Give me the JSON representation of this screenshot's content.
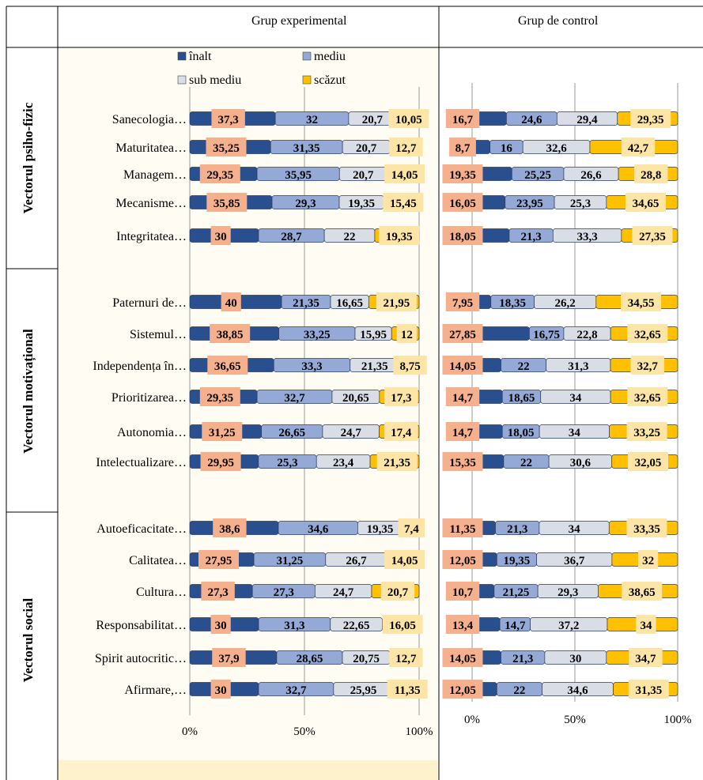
{
  "headers": {
    "experimental": "Grup experimental",
    "control": "Grup de control"
  },
  "vectors": [
    {
      "label": "Vectorul psiho-fizic"
    },
    {
      "label": "Vectorul motivațional"
    },
    {
      "label": "Vectorul social"
    }
  ],
  "legend": [
    {
      "name": "înalt",
      "color": "#2a4f8f"
    },
    {
      "name": "mediu",
      "color": "#95a9d6"
    },
    {
      "name": "sub mediu",
      "color": "#d9dde6"
    },
    {
      "name": "scăzut",
      "color": "#ffc000"
    }
  ],
  "colors": {
    "label_inalt": "#f5b08d",
    "label_scazut": "#fde5a8",
    "panel_fill": "#fffdf3",
    "footer_fill": "#fef2cc",
    "grid": "#9a9a9a"
  },
  "chart_data": [
    {
      "type": "bar",
      "stacked": true,
      "orientation": "horizontal",
      "title": "Grup experimental",
      "xlim": [
        0,
        100
      ],
      "xticks": [
        "0%",
        "50%",
        "100%"
      ],
      "categories": [
        "Sanecologia…",
        "Maturitatea…",
        "Managem…",
        "Mecanisme…",
        "Integritatea…",
        "Paternuri de…",
        "Sistemul…",
        "Independența în…",
        "Prioritizarea…",
        "Autonomia…",
        "Intelectualizare…",
        "Autoeficacitate…",
        "Calitatea…",
        "Cultura…",
        "Responsabilitat…",
        "Spirit autocritic…",
        "Afirmare,…"
      ],
      "series": [
        {
          "name": "înalt",
          "values": [
            "37,3",
            "35,25",
            "29,35",
            "35,85",
            "30",
            "40",
            "38,85",
            "36,65",
            "29,35",
            "31,25",
            "29,95",
            "38,6",
            "27,95",
            "27,3",
            "30",
            "37,9",
            "30"
          ]
        },
        {
          "name": "mediu",
          "values": [
            "32",
            "31,35",
            "35,95",
            "29,3",
            "28,7",
            "21,35",
            "33,25",
            "33,3",
            "32,7",
            "26,65",
            "25,3",
            "34,6",
            "31,25",
            "27,3",
            "31,3",
            "28,65",
            "32,7"
          ]
        },
        {
          "name": "sub mediu",
          "values": [
            "20,7",
            "20,7",
            "20,7",
            "19,35",
            "22",
            "16,65",
            "15,95",
            "21,35",
            "20,65",
            "24,7",
            "23,4",
            "19,35",
            "26,7",
            "24,7",
            "22,65",
            "20,75",
            "25,95"
          ]
        },
        {
          "name": "scăzut",
          "values": [
            "10,05",
            "12,7",
            "14,05",
            "15,45",
            "19,35",
            "21,95",
            "12",
            "8,75",
            "17,3",
            "17,4",
            "21,35",
            "7,4",
            "14,05",
            "20,7",
            "16,05",
            "12,7",
            "11,35"
          ]
        }
      ]
    },
    {
      "type": "bar",
      "stacked": true,
      "orientation": "horizontal",
      "title": "Grup de control",
      "xlim": [
        0,
        100
      ],
      "xticks": [
        "0%",
        "50%",
        "100%"
      ],
      "series": [
        {
          "name": "înalt",
          "values": [
            "16,7",
            "8,7",
            "19,35",
            "16,05",
            "18,05",
            "7,95",
            "27,85",
            "14,05",
            "14,7",
            "14,7",
            "15,35",
            "11,35",
            "12,05",
            "10,7",
            "13,4",
            "14,05",
            "12,05"
          ]
        },
        {
          "name": "mediu",
          "values": [
            "24,6",
            "16",
            "25,25",
            "23,95",
            "21,3",
            "18,35",
            "16,75",
            "22",
            "18,65",
            "18,05",
            "22",
            "21,3",
            "19,35",
            "21,25",
            "14,7",
            "21,3",
            "22"
          ]
        },
        {
          "name": "sub mediu",
          "values": [
            "29,4",
            "32,6",
            "26,6",
            "25,3",
            "33,3",
            "26,2",
            "22,8",
            "31,3",
            "34",
            "34",
            "30,6",
            "34",
            "36,7",
            "29,3",
            "37,2",
            "30",
            "34,6"
          ]
        },
        {
          "name": "scăzut",
          "values": [
            "29,35",
            "42,7",
            "28,8",
            "34,65",
            "27,35",
            "34,55",
            "32,65",
            "32,7",
            "32,65",
            "33,25",
            "32,05",
            "33,35",
            "32",
            "38,65",
            "34",
            "34,7",
            "31,35"
          ]
        }
      ]
    }
  ]
}
